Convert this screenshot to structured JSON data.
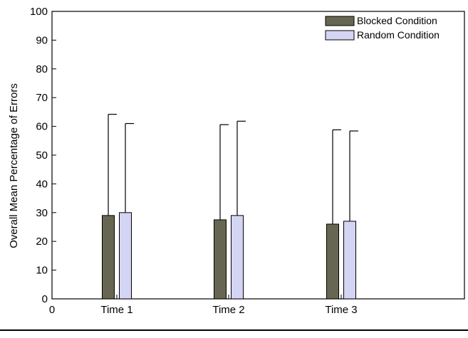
{
  "chart_data": {
    "type": "bar",
    "title": "",
    "xlabel": "",
    "ylabel": "Overall Mean Percentage of Errors",
    "ylim": [
      0,
      100
    ],
    "yticks": [
      0,
      10,
      20,
      30,
      40,
      50,
      60,
      70,
      80,
      90,
      100
    ],
    "x_origin_label": "0",
    "categories": [
      "Time 1",
      "Time 2",
      "Time 3"
    ],
    "series": [
      {
        "name": "Blocked Condition",
        "color": "#666652",
        "values": [
          29,
          27.5,
          26
        ],
        "error_upper": [
          64.2,
          60.6,
          58.8
        ]
      },
      {
        "name": "Random Condition",
        "color": "#d4d4f4",
        "values": [
          30,
          29,
          27
        ],
        "error_upper": [
          61,
          61.8,
          58.4
        ]
      }
    ],
    "legend_position": "top-right",
    "grid": false
  }
}
